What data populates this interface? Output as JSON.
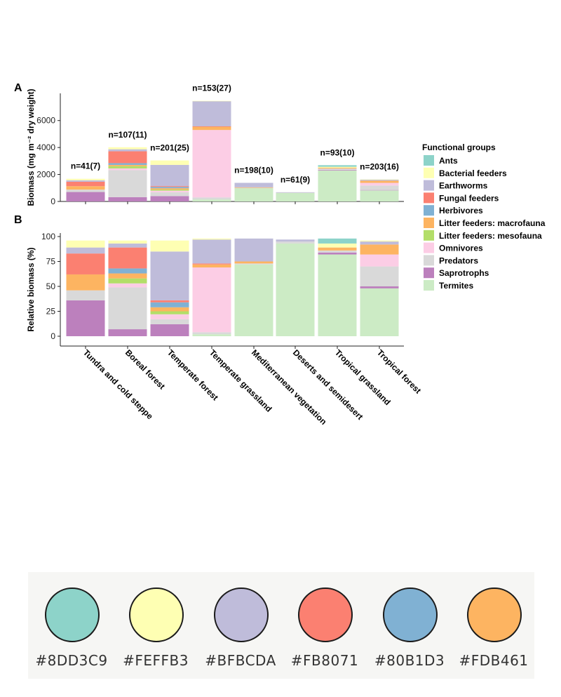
{
  "colors": {
    "Ants": "#8DD3C9",
    "Bacterial feeders": "#FEFFB3",
    "Earthworms": "#BFBCDA",
    "Fungal feeders": "#FB8071",
    "Herbivores": "#80B1D3",
    "Litter feeders: macrofauna": "#FDB461",
    "Litter feeders: mesofauna": "#B3DE69",
    "Omnivores": "#FCCDE5",
    "Predators": "#D9D9D9",
    "Saprotrophs": "#BC80BD",
    "Termites": "#CCEBC5"
  },
  "chart_data": [
    {
      "panel": "A",
      "type": "bar",
      "stacked": true,
      "title": "",
      "xlabel": "",
      "ylabel": "Biomass (mg m⁻² dry weight)",
      "ylim": [
        0,
        8000
      ],
      "yticks": [
        0,
        2000,
        4000,
        6000
      ],
      "categories": [
        "Tundra and cold steppe",
        "Boreal forest",
        "Temperate forest",
        "Temperate grassland",
        "Mediterranean vegetation",
        "Deserts and semidesert",
        "Tropical grassland",
        "Tropical forest"
      ],
      "annotations": [
        "n=41(7)",
        "n=107(11)",
        "n=201(25)",
        "n=153(27)",
        "n=198(10)",
        "n=61(9)",
        "n=93(10)",
        "n=203(16)"
      ],
      "series": [
        {
          "name": "Termites",
          "values": [
            0,
            0,
            0,
            150,
            1000,
            650,
            2300,
            820
          ]
        },
        {
          "name": "Saprotrophs",
          "values": [
            700,
            320,
            400,
            0,
            0,
            0,
            50,
            30
          ]
        },
        {
          "name": "Predators",
          "values": [
            180,
            2000,
            280,
            150,
            10,
            10,
            90,
            330
          ]
        },
        {
          "name": "Omnivores",
          "values": [
            0,
            130,
            120,
            5000,
            0,
            0,
            0,
            200
          ]
        },
        {
          "name": "Litter feeders: mesofauna",
          "values": [
            0,
            170,
            80,
            0,
            0,
            0,
            0,
            0
          ]
        },
        {
          "name": "Litter feeders: macrofauna",
          "values": [
            250,
            90,
            100,
            250,
            40,
            0,
            60,
            160
          ]
        },
        {
          "name": "Herbivores",
          "values": [
            0,
            130,
            100,
            0,
            0,
            0,
            0,
            0
          ]
        },
        {
          "name": "Fungal feeders",
          "values": [
            330,
            880,
            60,
            20,
            0,
            0,
            0,
            0
          ]
        },
        {
          "name": "Earthworms",
          "values": [
            110,
            150,
            1570,
            1870,
            330,
            25,
            0,
            80
          ]
        },
        {
          "name": "Bacterial feeders",
          "values": [
            110,
            150,
            330,
            20,
            0,
            0,
            70,
            20
          ]
        },
        {
          "name": "Ants",
          "values": [
            0,
            0,
            0,
            0,
            0,
            0,
            120,
            0
          ]
        }
      ]
    },
    {
      "panel": "B",
      "type": "bar",
      "stacked": true,
      "title": "",
      "xlabel": "",
      "ylabel": "Relative biomass (%)",
      "ylim": [
        0,
        100
      ],
      "yticks": [
        0,
        25,
        50,
        75,
        100
      ],
      "categories": [
        "Tundra and cold steppe",
        "Boreal forest",
        "Temperate forest",
        "Temperate grassland",
        "Mediterranean vegetation",
        "Deserts and semidesert",
        "Tropical grassland",
        "Tropical forest"
      ],
      "series": [
        {
          "name": "Termites",
          "values": [
            0,
            0,
            0,
            2,
            72,
            93,
            82,
            48
          ]
        },
        {
          "name": "Saprotrophs",
          "values": [
            36,
            7,
            12,
            0,
            0,
            0,
            2,
            2
          ]
        },
        {
          "name": "Predators",
          "values": [
            10,
            42,
            5,
            2,
            1,
            2,
            2,
            20
          ]
        },
        {
          "name": "Omnivores",
          "values": [
            0,
            4,
            5,
            65,
            0,
            0,
            0,
            12
          ]
        },
        {
          "name": "Litter feeders: mesofauna",
          "values": [
            0,
            5,
            3,
            0,
            0,
            0,
            0,
            0
          ]
        },
        {
          "name": "Litter feeders: macrofauna",
          "values": [
            16,
            5,
            4,
            3,
            2,
            0,
            3,
            10
          ]
        },
        {
          "name": "Herbivores",
          "values": [
            0,
            5,
            5,
            0,
            0,
            0,
            0,
            0
          ]
        },
        {
          "name": "Fungal feeders",
          "values": [
            21,
            21,
            2,
            1,
            0,
            0,
            0,
            0
          ]
        },
        {
          "name": "Earthworms",
          "values": [
            6,
            4,
            49,
            24,
            23,
            2,
            0,
            3
          ]
        },
        {
          "name": "Bacterial feeders",
          "values": [
            7,
            3,
            11,
            1,
            0,
            0,
            4,
            1
          ]
        },
        {
          "name": "Ants",
          "values": [
            0,
            0,
            0,
            0,
            0,
            0,
            5,
            0
          ]
        }
      ]
    }
  ],
  "panel_labels": {
    "a": "A",
    "b": "B"
  },
  "legend": {
    "title": "Functional groups",
    "items": [
      "Ants",
      "Bacterial feeders",
      "Earthworms",
      "Fungal feeders",
      "Herbivores",
      "Litter feeders: macrofauna",
      "Litter feeders: mesofauna",
      "Omnivores",
      "Predators",
      "Saprotrophs",
      "Termites"
    ]
  },
  "swatches": [
    {
      "hex": "#8DD3C9",
      "label": "#8DD3C9"
    },
    {
      "hex": "#FEFFB3",
      "label": "#FEFFB3"
    },
    {
      "hex": "#BFBCDA",
      "label": "#BFBCDA"
    },
    {
      "hex": "#FB8071",
      "label": "#FB8071"
    },
    {
      "hex": "#80B1D3",
      "label": "#80B1D3"
    },
    {
      "hex": "#FDB461",
      "label": "#FDB461"
    }
  ]
}
